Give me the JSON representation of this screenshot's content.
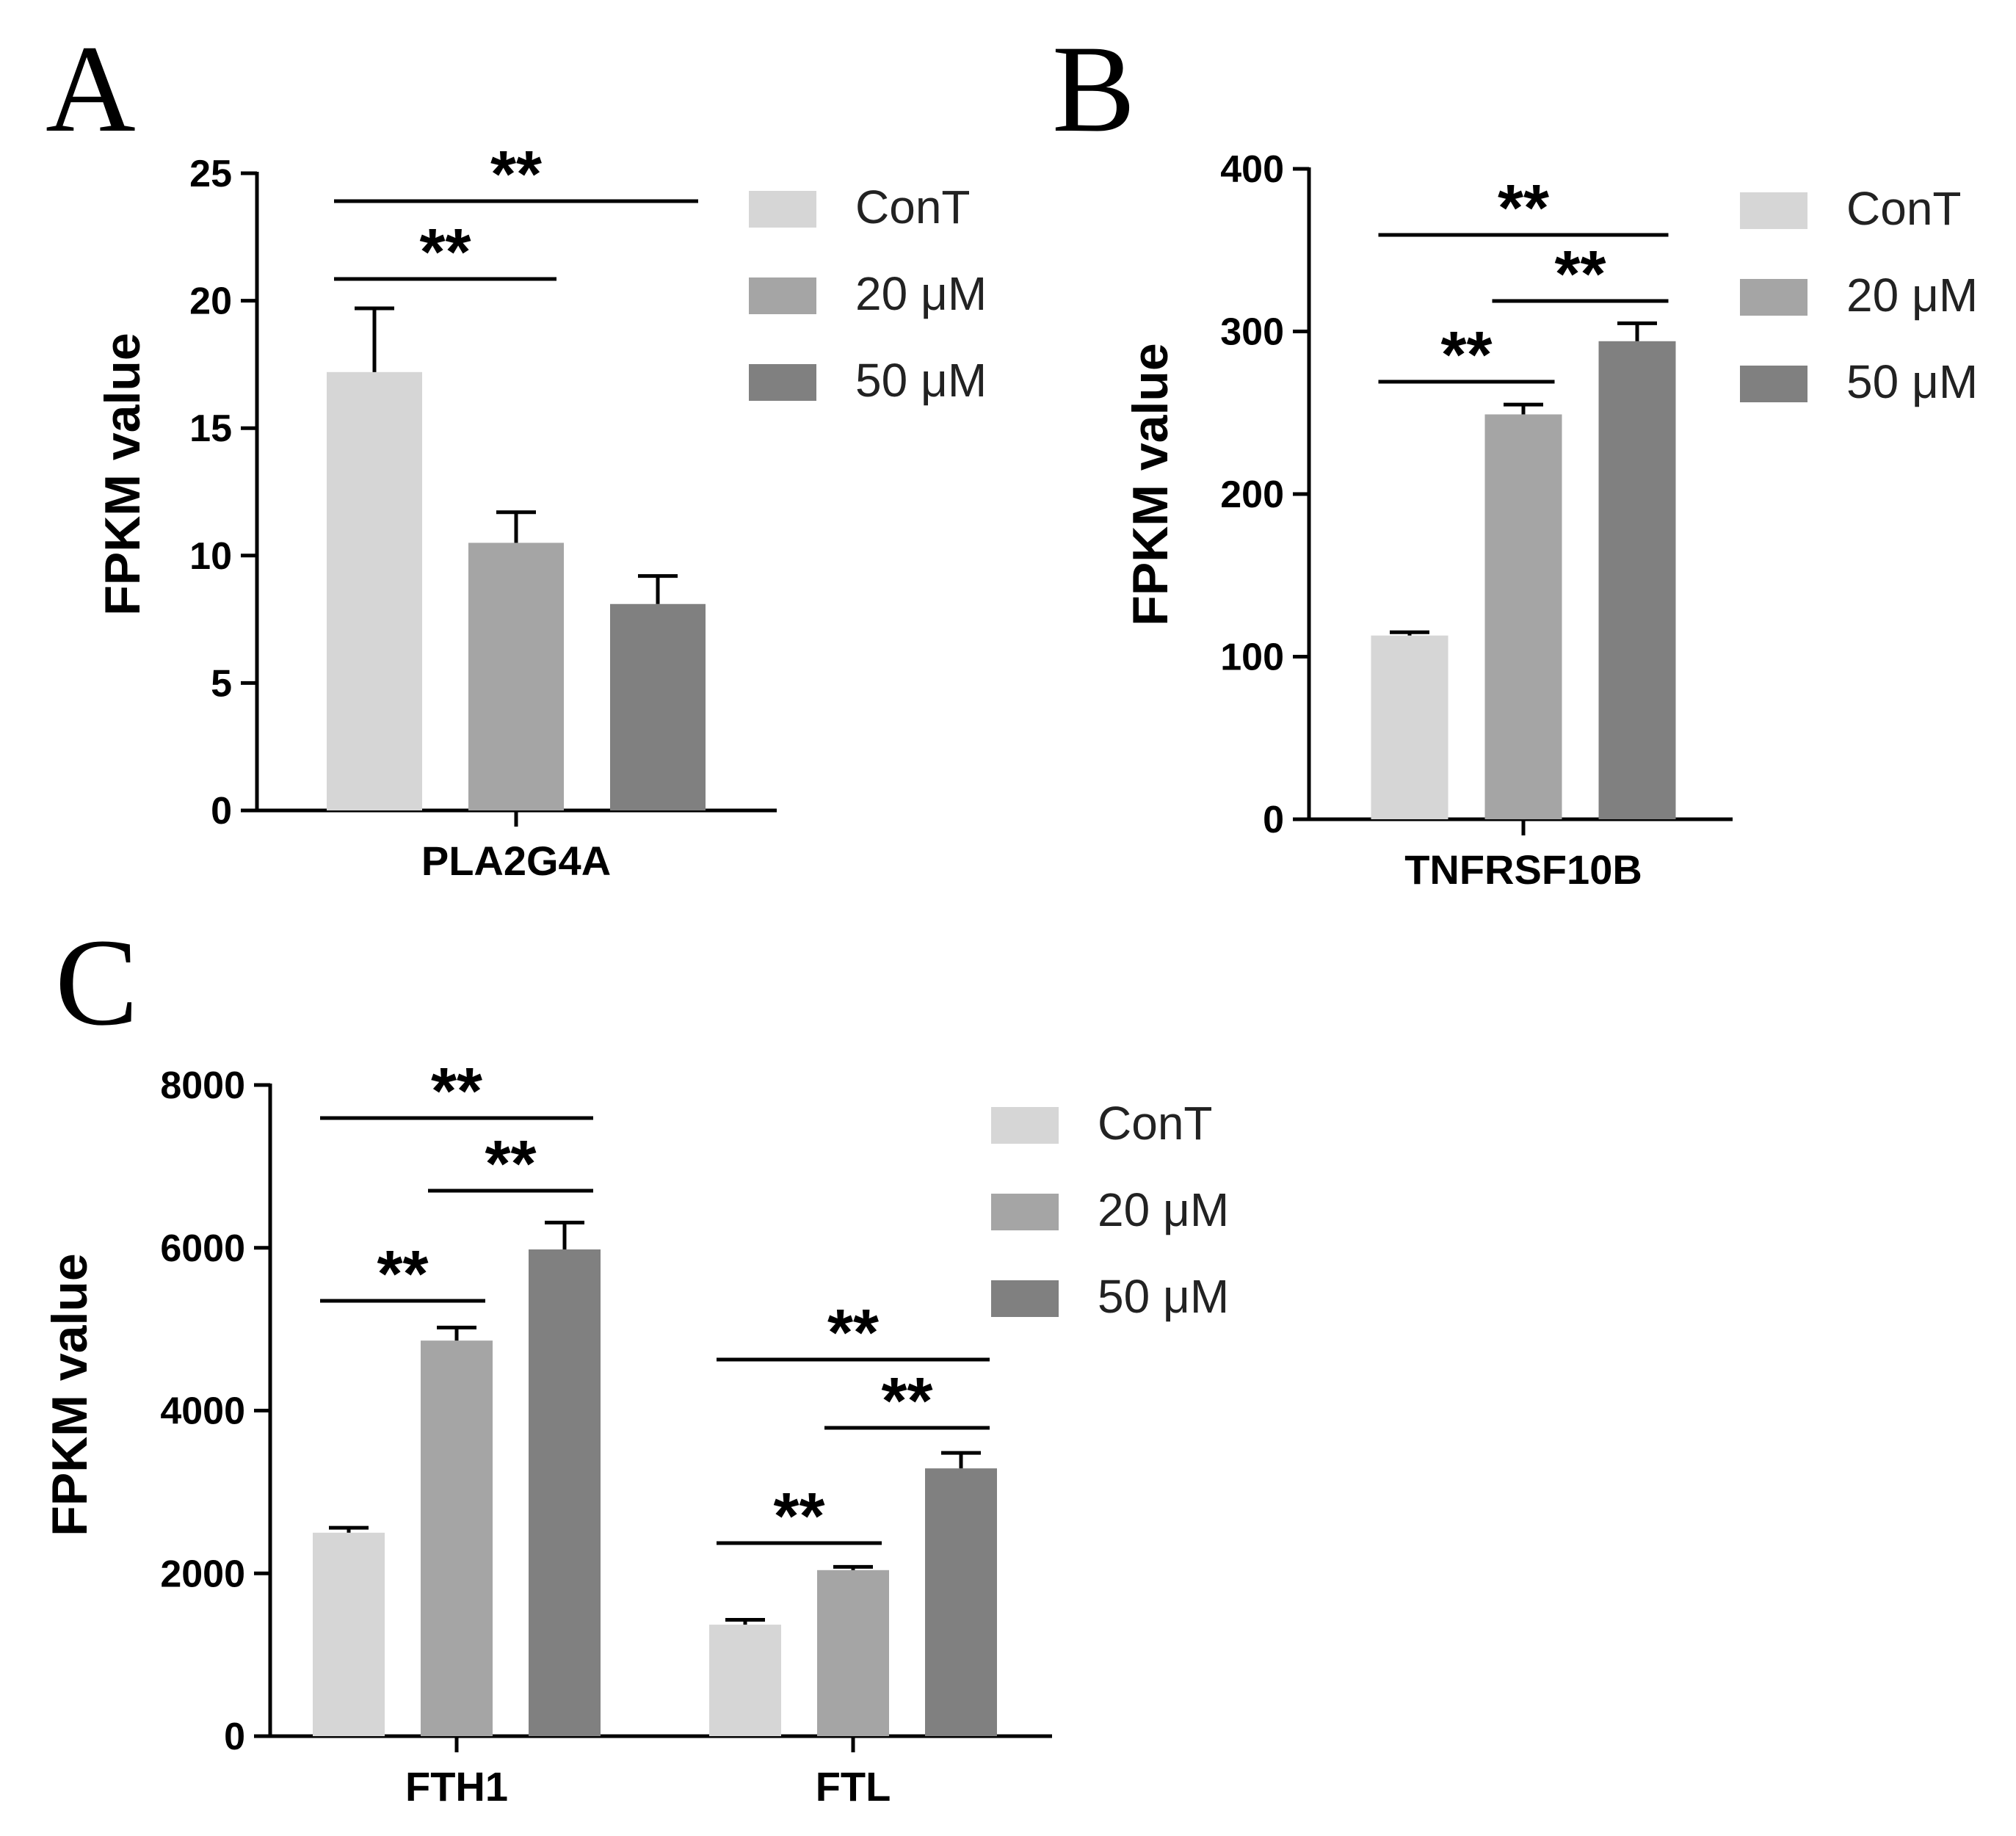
{
  "colors": {
    "ConT": "#d6d6d6",
    "20 μM": "#a5a5a5",
    "50 μM": "#808080",
    "axis": "#000000"
  },
  "chart_data": [
    {
      "panel": "A",
      "type": "bar",
      "ylabel": "FPKM value",
      "ylim": [
        0,
        25
      ],
      "yticks": [
        "0",
        "5",
        "10",
        "15",
        "20",
        "25"
      ],
      "legend": [
        "ConT",
        "20 μM",
        "50 μM"
      ],
      "categories": [
        "PLA2G4A"
      ],
      "series": [
        {
          "name": "ConT",
          "values": [
            17.2
          ],
          "errors": [
            2.5
          ]
        },
        {
          "name": "20 μM",
          "values": [
            10.5
          ],
          "errors": [
            1.2
          ]
        },
        {
          "name": "50 μM",
          "values": [
            8.1
          ],
          "errors": [
            1.1
          ]
        }
      ],
      "significance": [
        {
          "category": 0,
          "from": 0,
          "to": 1,
          "label": "**"
        },
        {
          "category": 0,
          "from": 0,
          "to": 2,
          "label": "**"
        }
      ]
    },
    {
      "panel": "B",
      "type": "bar",
      "ylabel": "FPKM value",
      "ylim": [
        0,
        400
      ],
      "yticks": [
        "0",
        "100",
        "200",
        "300",
        "400"
      ],
      "legend": [
        "ConT",
        "20 μM",
        "50 μM"
      ],
      "categories": [
        "TNFRSF10B"
      ],
      "series": [
        {
          "name": "ConT",
          "values": [
            113
          ],
          "errors": [
            2
          ]
        },
        {
          "name": "20 μM",
          "values": [
            249
          ],
          "errors": [
            6
          ]
        },
        {
          "name": "50 μM",
          "values": [
            294
          ],
          "errors": [
            11
          ]
        }
      ],
      "significance": [
        {
          "category": 0,
          "from": 0,
          "to": 1,
          "label": "**"
        },
        {
          "category": 0,
          "from": 1,
          "to": 2,
          "label": "**"
        },
        {
          "category": 0,
          "from": 0,
          "to": 2,
          "label": "**"
        }
      ]
    },
    {
      "panel": "C",
      "type": "bar",
      "ylabel": "FPKM value",
      "ylim": [
        0,
        8000
      ],
      "yticks": [
        "0",
        "2000",
        "4000",
        "6000",
        "8000"
      ],
      "legend": [
        "ConT",
        "20 μM",
        "50 μM"
      ],
      "categories": [
        "FTH1",
        "FTL"
      ],
      "series": [
        {
          "name": "ConT",
          "values": [
            2500,
            1370
          ],
          "errors": [
            60,
            60
          ]
        },
        {
          "name": "20 μM",
          "values": [
            4860,
            2040
          ],
          "errors": [
            160,
            40
          ]
        },
        {
          "name": "50 μM",
          "values": [
            5980,
            3290
          ],
          "errors": [
            330,
            190
          ]
        }
      ],
      "significance": [
        {
          "category": 0,
          "from": 0,
          "to": 1,
          "label": "**"
        },
        {
          "category": 0,
          "from": 1,
          "to": 2,
          "label": "**"
        },
        {
          "category": 0,
          "from": 0,
          "to": 2,
          "label": "**"
        },
        {
          "category": 1,
          "from": 0,
          "to": 1,
          "label": "**"
        },
        {
          "category": 1,
          "from": 1,
          "to": 2,
          "label": "**"
        },
        {
          "category": 1,
          "from": 0,
          "to": 2,
          "label": "**"
        }
      ]
    }
  ]
}
